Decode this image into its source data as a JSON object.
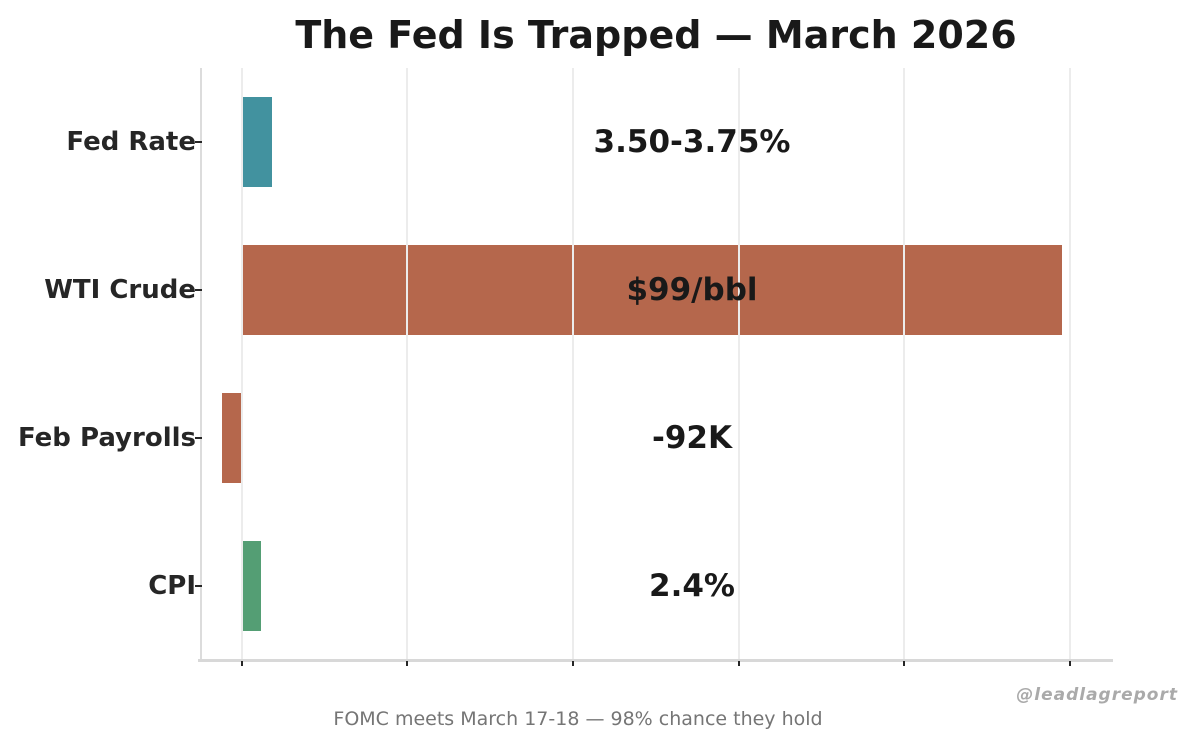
{
  "header": {
    "title": "The Fed Is Trapped — March 2026"
  },
  "footer": {
    "note": "FOMC meets March 17-18 — 98% chance they hold"
  },
  "watermark": "@leadlagreport",
  "colors": {
    "teal": "#42929f",
    "sienna": "#b5674c",
    "green": "#549e74",
    "grid": "#ececec",
    "spine": "#d8d8d8",
    "text_dark": "#191919",
    "text_gray": "#757575"
  },
  "chart_data": {
    "type": "bar",
    "orientation": "horizontal",
    "title": "The Fed Is Trapped — March 2026",
    "xlabel": "",
    "ylabel": "",
    "xlim": [
      -5,
      105
    ],
    "x_gridlines": [
      0,
      20,
      40,
      60,
      80,
      100
    ],
    "x_tick_labels_visible": false,
    "grid": "on",
    "legend": "none",
    "categories": [
      "Fed Rate",
      "WTI Crude",
      "Feb Payrolls",
      "CPI"
    ],
    "value_labels": [
      "3.50-3.75%",
      "$99/bbl",
      "-92K",
      "2.4%"
    ],
    "rows": [
      {
        "category": "Fed Rate",
        "value_label": "3.50-3.75%",
        "plotted_value": 3.625,
        "color": "#42929f"
      },
      {
        "category": "WTI Crude",
        "value_label": "$99/bbl",
        "plotted_value": 99,
        "color": "#b5674c"
      },
      {
        "category": "Feb Payrolls",
        "value_label": "-92K",
        "plotted_value": -2.4,
        "color": "#b5674c"
      },
      {
        "category": "CPI",
        "value_label": "2.4%",
        "plotted_value": 2.4,
        "color": "#549e74"
      }
    ],
    "footnote": "FOMC meets March 17-18 — 98% chance they hold",
    "watermark": "@leadlagreport"
  }
}
